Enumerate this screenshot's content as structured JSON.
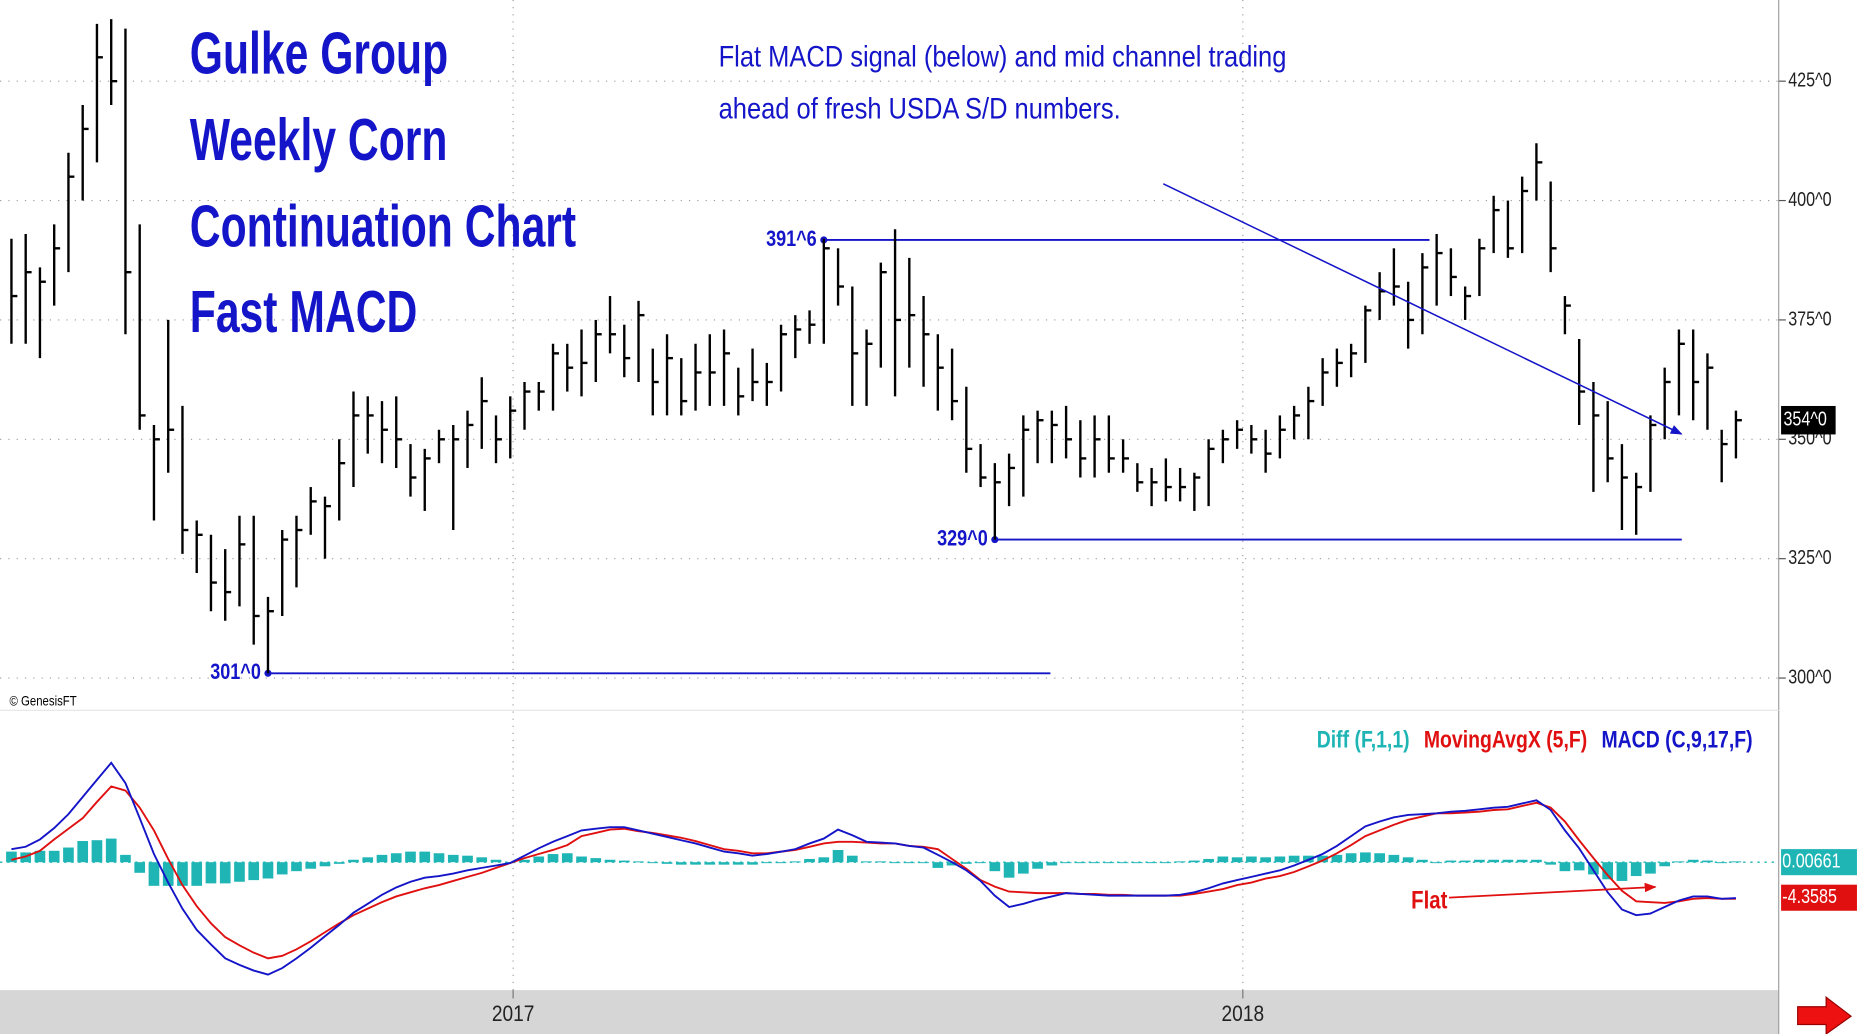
{
  "chart_data": [
    {
      "type": "ohlc",
      "title": [
        "Gulke Group",
        "Weekly Corn",
        "Continuation Chart",
        "Fast MACD"
      ],
      "annotation": [
        "Flat MACD signal (below) and mid channel trading",
        "ahead of fresh USDA S/D numbers."
      ],
      "source": "© GenesisFT",
      "color": "#000000",
      "xlim": [
        -0.8,
        124
      ],
      "xticks": [
        {
          "value": 35.2,
          "label": "2017"
        },
        {
          "value": 86.4,
          "label": "2018"
        }
      ],
      "ylim": [
        293.5,
        442
      ],
      "yticks": [
        {
          "value": 300,
          "label": "300^0"
        },
        {
          "value": 325,
          "label": "325^0"
        },
        {
          "value": 350,
          "label": "350^0"
        },
        {
          "value": 375,
          "label": "375^0"
        },
        {
          "value": 400,
          "label": "400^0"
        },
        {
          "value": 425,
          "label": "425^0"
        }
      ],
      "grid": true,
      "high": [
        392,
        393,
        386,
        395,
        410,
        420,
        437,
        438,
        436,
        395,
        353,
        375,
        357,
        333,
        330,
        327,
        334,
        334,
        317,
        331,
        334,
        340,
        338,
        350,
        360,
        359,
        358,
        359,
        349,
        348,
        352,
        353,
        356,
        363,
        355,
        359,
        362,
        362,
        370,
        370,
        373,
        375,
        380,
        374,
        379,
        369,
        372,
        367,
        370,
        372,
        373,
        365,
        369,
        366,
        374,
        376,
        377,
        392,
        390,
        382,
        373,
        387,
        394,
        388,
        380,
        372,
        369,
        361,
        349,
        345,
        347,
        355,
        356,
        356,
        357,
        354,
        355,
        355,
        350,
        345,
        344,
        346,
        344,
        343,
        350,
        352,
        354,
        353,
        352,
        355,
        357,
        361,
        367,
        369,
        370,
        378,
        385,
        390,
        383,
        389,
        393,
        390,
        382,
        392,
        401,
        400,
        405,
        412,
        404,
        380,
        371,
        362,
        358,
        349,
        343,
        355,
        365,
        373,
        373,
        368,
        352,
        356
      ],
      "low": [
        370,
        370,
        367,
        378,
        385,
        400,
        408,
        420,
        372,
        352,
        333,
        343,
        326,
        322,
        314,
        312,
        315,
        307,
        301,
        313,
        319,
        330,
        325,
        333,
        340,
        347,
        345,
        344,
        338,
        335,
        345,
        331,
        344,
        348,
        345,
        346,
        352,
        356,
        356,
        360,
        359,
        362,
        368,
        363,
        362,
        355,
        355,
        355,
        356,
        357,
        357,
        355,
        358,
        357,
        360,
        367,
        370,
        370,
        378,
        357,
        357,
        365,
        359,
        365,
        361,
        356,
        354,
        343,
        340,
        329,
        336,
        338,
        345,
        345,
        346,
        342,
        342,
        343,
        343,
        339,
        336,
        337,
        337,
        335,
        336,
        345,
        348,
        347,
        343,
        346,
        350,
        350,
        357,
        361,
        363,
        366,
        375,
        378,
        369,
        372,
        378,
        380,
        375,
        380,
        389,
        388,
        389,
        400,
        385,
        372,
        353,
        339,
        341,
        331,
        330,
        339,
        350,
        355,
        354,
        352,
        341,
        346
      ],
      "close": [
        380,
        385,
        383,
        390,
        405,
        415,
        430,
        425,
        385,
        355,
        350,
        352,
        331,
        330,
        320,
        318,
        328,
        313,
        314,
        329,
        331,
        337,
        336,
        345,
        355,
        355,
        352,
        350,
        342,
        346,
        350,
        350,
        353,
        358,
        350,
        356,
        360,
        360,
        368,
        365,
        366,
        372,
        372,
        367,
        376,
        362,
        367,
        358,
        364,
        364,
        368,
        359,
        362,
        362,
        372,
        373,
        374,
        390,
        382,
        368,
        370,
        385,
        375,
        376,
        372,
        365,
        358,
        348,
        342,
        341,
        344,
        352,
        354,
        353,
        350,
        346,
        350,
        346,
        346,
        341,
        341,
        340,
        340,
        342,
        348,
        350,
        352,
        350,
        347,
        352,
        355,
        358,
        364,
        366,
        368,
        377,
        381,
        382,
        375,
        386,
        389,
        384,
        380,
        390,
        398,
        390,
        402,
        408,
        390,
        378,
        360,
        355,
        346,
        342,
        340,
        353,
        362,
        370,
        362,
        365,
        349,
        354
      ],
      "levels": [
        {
          "value": 391.75,
          "label": "391^6",
          "from": 57,
          "to": 99.5
        },
        {
          "value": 329,
          "label": "329^0",
          "from": 69,
          "to": 117.2
        },
        {
          "value": 301,
          "label": "301^0",
          "from": 18,
          "to": 72.9
        }
      ],
      "last_price": {
        "value": 354,
        "label": "354^0"
      }
    },
    {
      "type": "macd",
      "annotation": "Flat",
      "xlim": [
        -0.8,
        124
      ],
      "ylim": [
        -15.7,
        18.5
      ],
      "series": [
        {
          "name": "Diff (F,1,1)",
          "color": "#1fb5b5",
          "kind": "bar",
          "last": 0.00661,
          "values": [
            1.3,
            1.2,
            1.4,
            1.4,
            1.8,
            2.6,
            2.7,
            2.9,
            0.9,
            -1.3,
            -2.9,
            -2.9,
            -2.9,
            -2.9,
            -2.6,
            -2.6,
            -2.4,
            -2.2,
            -2.0,
            -1.5,
            -1.1,
            -0.8,
            -0.5,
            -0.2,
            0.3,
            0.6,
            0.9,
            1.1,
            1.3,
            1.3,
            1.1,
            0.9,
            0.8,
            0.6,
            0.3,
            0,
            0.3,
            0.7,
            1.0,
            1.1,
            0.7,
            0.5,
            0.3,
            0.2,
            0.1,
            -0.1,
            -0.2,
            -0.3,
            -0.3,
            -0.3,
            -0.3,
            -0.3,
            -0.3,
            -0.1,
            0,
            0.1,
            0.4,
            0.6,
            1.5,
            0.8,
            0.1,
            0.1,
            0,
            0,
            -0.1,
            -0.7,
            -0.4,
            -0.2,
            -0.1,
            -1.1,
            -1.9,
            -1.4,
            -0.8,
            -0.4,
            0,
            0,
            -0.1,
            -0.1,
            -0.1,
            0,
            0,
            0,
            0.1,
            0.2,
            0.4,
            0.7,
            0.6,
            0.7,
            0.6,
            0.7,
            0.8,
            0.8,
            0.8,
            0.9,
            1.1,
            1.2,
            1.1,
            0.9,
            0.6,
            0.3,
            0,
            0.2,
            0.2,
            0.3,
            0.3,
            0.3,
            0.3,
            0.3,
            -0.3,
            -1.1,
            -1.0,
            -1.5,
            -2.1,
            -2.3,
            -1.7,
            -1.4,
            -0.5,
            0.1,
            0.3,
            0.2,
            0,
            0.1
          ]
        },
        {
          "name": "MovingAvgX (5,F)",
          "color": "#e01010",
          "kind": "line",
          "last": -4.3585,
          "values": [
            0.3,
            0.7,
            1.4,
            2.8,
            4.1,
            5.4,
            7.4,
            9.3,
            8.8,
            6.7,
            3.9,
            0.4,
            -2.8,
            -5.4,
            -7.5,
            -9.2,
            -10.2,
            -11.1,
            -11.8,
            -11.5,
            -10.7,
            -9.7,
            -8.6,
            -7.5,
            -6.5,
            -5.7,
            -4.9,
            -4.2,
            -3.7,
            -3.2,
            -2.8,
            -2.3,
            -1.8,
            -1.3,
            -0.7,
            -0.1,
            0.5,
            1.0,
            1.5,
            2.1,
            3.2,
            3.6,
            4.0,
            4.1,
            3.8,
            3.6,
            3.3,
            3.0,
            2.6,
            2.1,
            1.6,
            1.4,
            1.1,
            1.1,
            1.3,
            1.5,
            1.9,
            2.3,
            2.5,
            2.5,
            2.4,
            2.3,
            2.3,
            2.0,
            1.9,
            1.6,
            0.4,
            -0.8,
            -2.2,
            -3.0,
            -3.6,
            -3.7,
            -3.8,
            -3.8,
            -3.8,
            -3.9,
            -3.9,
            -4.0,
            -4.0,
            -4.1,
            -4.1,
            -4.1,
            -4.1,
            -3.9,
            -3.6,
            -3.3,
            -2.8,
            -2.5,
            -2.0,
            -1.7,
            -1.2,
            -0.5,
            0.2,
            1.1,
            2.1,
            3.2,
            3.9,
            4.6,
            5.2,
            5.6,
            6.0,
            6.0,
            6.1,
            6.2,
            6.4,
            6.5,
            6.9,
            7.3,
            6.7,
            5.0,
            2.7,
            0.5,
            -1.6,
            -3.5,
            -4.8,
            -4.9,
            -5.0,
            -4.8,
            -4.5,
            -4.4,
            -4.5,
            -4.5
          ]
        },
        {
          "name": "MACD (C,9,17,F)",
          "color": "#1414c8",
          "kind": "line",
          "values": [
            1.6,
            1.9,
            2.8,
            4.2,
            5.9,
            8.0,
            10.1,
            12.2,
            9.7,
            5.4,
            1.0,
            -2.5,
            -5.7,
            -8.3,
            -10.1,
            -11.8,
            -12.6,
            -13.3,
            -13.8,
            -13.0,
            -11.8,
            -10.5,
            -9.1,
            -7.7,
            -6.2,
            -5.1,
            -4.0,
            -3.1,
            -2.4,
            -1.9,
            -1.7,
            -1.4,
            -1.0,
            -0.7,
            -0.4,
            -0.1,
            0.8,
            1.7,
            2.5,
            3.2,
            3.9,
            4.1,
            4.3,
            4.3,
            3.9,
            3.5,
            3.1,
            2.7,
            2.3,
            1.8,
            1.3,
            1.1,
            0.8,
            1.0,
            1.3,
            1.6,
            2.3,
            2.9,
            4.0,
            3.3,
            2.5,
            2.4,
            2.3,
            2.0,
            1.8,
            0.9,
            0,
            -1.0,
            -2.3,
            -4.1,
            -5.5,
            -5.1,
            -4.6,
            -4.2,
            -3.8,
            -3.9,
            -4.0,
            -4.1,
            -4.1,
            -4.1,
            -4.1,
            -4.1,
            -4.0,
            -3.7,
            -3.2,
            -2.6,
            -2.2,
            -1.8,
            -1.4,
            -1.0,
            -0.4,
            0.3,
            1.0,
            2.0,
            3.2,
            4.4,
            5.0,
            5.5,
            5.8,
            5.9,
            6.0,
            6.2,
            6.3,
            6.5,
            6.7,
            6.8,
            7.2,
            7.6,
            6.4,
            3.9,
            1.7,
            -1.0,
            -3.7,
            -5.8,
            -6.5,
            -6.3,
            -5.5,
            -4.7,
            -4.2,
            -4.2,
            -4.5,
            -4.4
          ]
        }
      ]
    }
  ]
}
